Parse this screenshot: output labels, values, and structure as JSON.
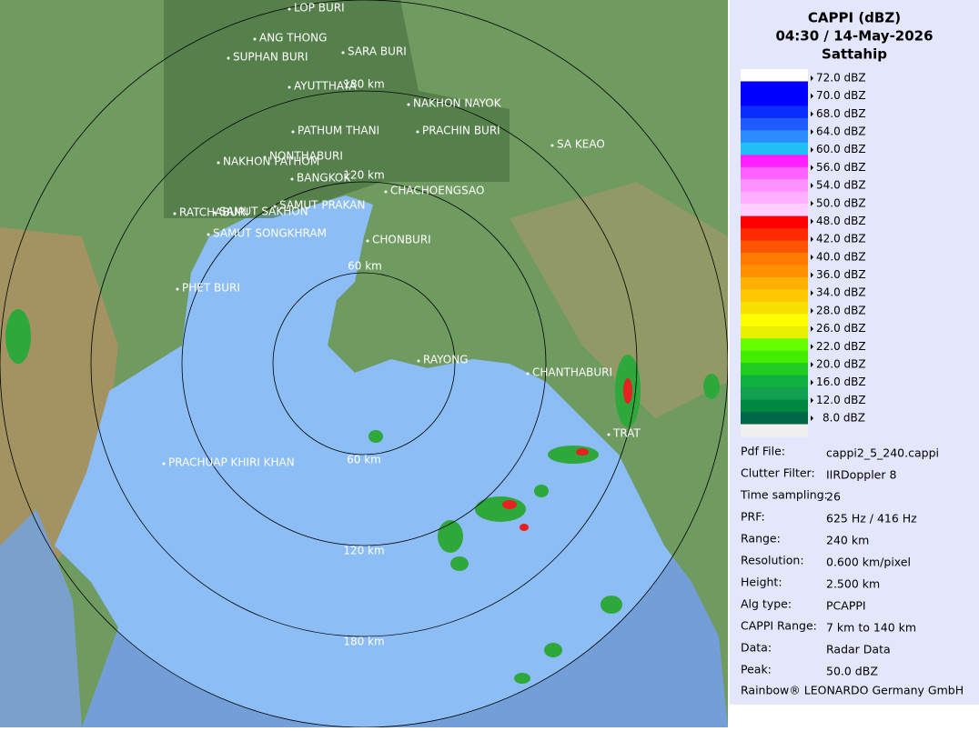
{
  "map": {
    "cities": [
      "LOP BURI",
      "ANG THONG",
      "SARA BURI",
      "SUPHAN BURI",
      "AYUTTHAYA",
      "NAKHON NAYOK",
      "PATHUM THANI",
      "PRACHIN BURI",
      "SA KEAO",
      "NONTHABURI",
      "NAKHON PATHOM",
      "BANGKOK",
      "CHACHOENGSAO",
      "SAMUT PRAKAN",
      "RATCHABURI",
      "SAMUT SAKHON",
      "SAMUT SONGKHRAM",
      "CHONBURI",
      "PHET BURI",
      "RAYONG",
      "CHANTHABURI",
      "TRAT",
      "PRACHUAP KHIRI KHAN"
    ],
    "ring_labels": [
      "180 km",
      "120 km",
      "60 km",
      "60 km",
      "120 km",
      "180 km"
    ]
  },
  "panel": {
    "title": "CAPPI (dBZ)",
    "datetime": "04:30 / 14-May-2026",
    "site": "Sattahip",
    "legend": [
      "72.0 dBZ",
      "70.0 dBZ",
      "68.0 dBZ",
      "64.0 dBZ",
      "60.0 dBZ",
      "56.0 dBZ",
      "54.0 dBZ",
      "50.0 dBZ",
      "48.0 dBZ",
      "42.0 dBZ",
      "40.0 dBZ",
      "36.0 dBZ",
      "34.0 dBZ",
      "28.0 dBZ",
      "26.0 dBZ",
      "22.0 dBZ",
      "20.0 dBZ",
      "16.0 dBZ",
      "12.0 dBZ",
      "8.0 dBZ"
    ],
    "info": [
      {
        "label": "Pdf File:",
        "value": "cappi2_5_240.cappi"
      },
      {
        "label": "Clutter Filter:",
        "value": "IIRDoppler 8"
      },
      {
        "label": "Time sampling:",
        "value": "26"
      },
      {
        "label": "PRF:",
        "value": "625 Hz / 416 Hz"
      },
      {
        "label": "Range:",
        "value": "240 km"
      },
      {
        "label": "Resolution:",
        "value": "0.600 km/pixel"
      },
      {
        "label": "Height:",
        "value": "2.500 km"
      },
      {
        "label": "Alg type:",
        "value": "PCAPPI"
      },
      {
        "label": "CAPPI Range:",
        "value": "7 km to 140 km"
      },
      {
        "label": "Data:",
        "value": "Radar Data"
      },
      {
        "label": "Peak:",
        "value": "50.0 dBZ"
      }
    ],
    "footer": "Rainbow® LEONARDO Germany GmbH"
  }
}
